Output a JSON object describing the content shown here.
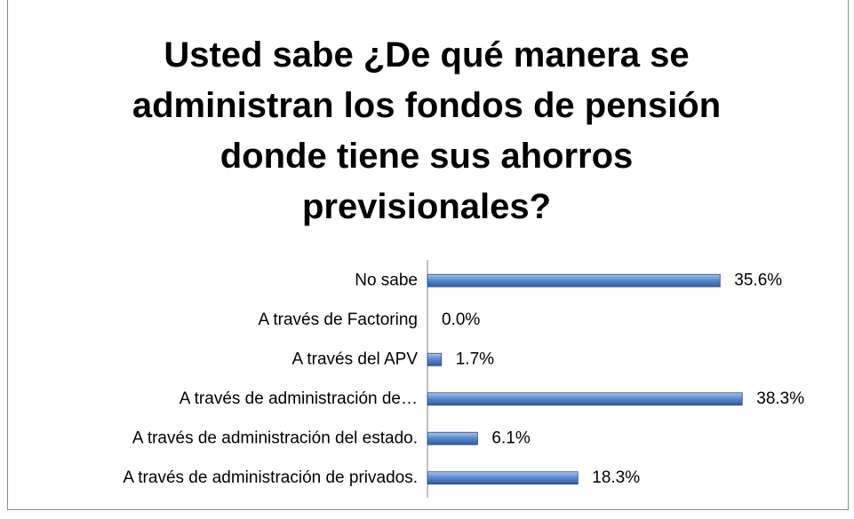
{
  "chart_data": {
    "type": "bar",
    "orientation": "horizontal",
    "title": "Usted sabe ¿De qué manera se administran los fondos de pensión donde tiene sus ahorros previsionales?",
    "categories": [
      "No sabe",
      "A través de Factoring",
      "A través del APV",
      "A través de administración de…",
      "A través de administración del estado.",
      "A través de administración de privados."
    ],
    "values": [
      35.6,
      0.0,
      1.7,
      38.3,
      6.1,
      18.3
    ],
    "value_labels": [
      "35.6%",
      "0.0%",
      "1.7%",
      "38.3%",
      "6.1%",
      "18.3%"
    ],
    "color": "#4f81bd",
    "xlim": [
      0,
      40
    ]
  }
}
